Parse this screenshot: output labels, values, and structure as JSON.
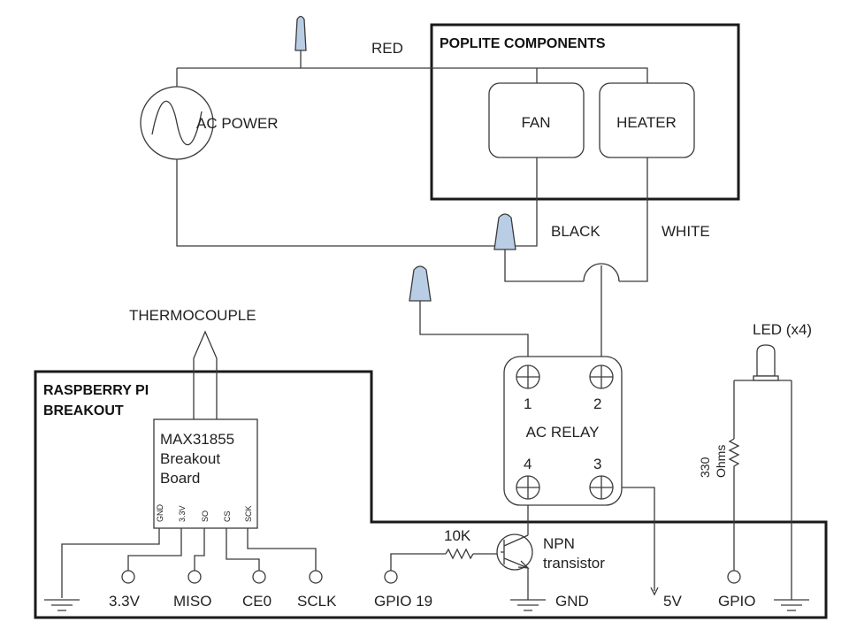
{
  "labels": {
    "red": "RED",
    "black": "BLACK",
    "white": "WHITE",
    "ac_power": "AC POWER",
    "poplite_title": "POPLITE COMPONENTS",
    "fan": "FAN",
    "heater": "HEATER",
    "thermocouple": "THERMOCOUPLE",
    "rpi_title_1": "RASPBERRY PI",
    "rpi_title_2": "BREAKOUT",
    "max_line1": "MAX31855",
    "max_line2": "Breakout",
    "max_line3": "Board",
    "pin_gnd": "GND",
    "pin_33": "3.3V",
    "pin_so": "SO",
    "pin_cs": "CS",
    "pin_sck": "SCK",
    "relay_title": "AC RELAY",
    "relay_1": "1",
    "relay_2": "2",
    "relay_3": "3",
    "relay_4": "4",
    "led": "LED (x4)",
    "r330_line1": "330",
    "r330_line2": "Ohms",
    "r10k": "10K",
    "npn_line1": "NPN",
    "npn_line2": "transistor",
    "t_33": "3.3V",
    "t_miso": "MISO",
    "t_ce0": "CE0",
    "t_sclk": "SCLK",
    "t_gpio19": "GPIO 19",
    "t_gnd": "GND",
    "t_5v": "5V",
    "t_gpio": "GPIO"
  },
  "colors": {
    "wire_nut": "#b9cde5"
  }
}
